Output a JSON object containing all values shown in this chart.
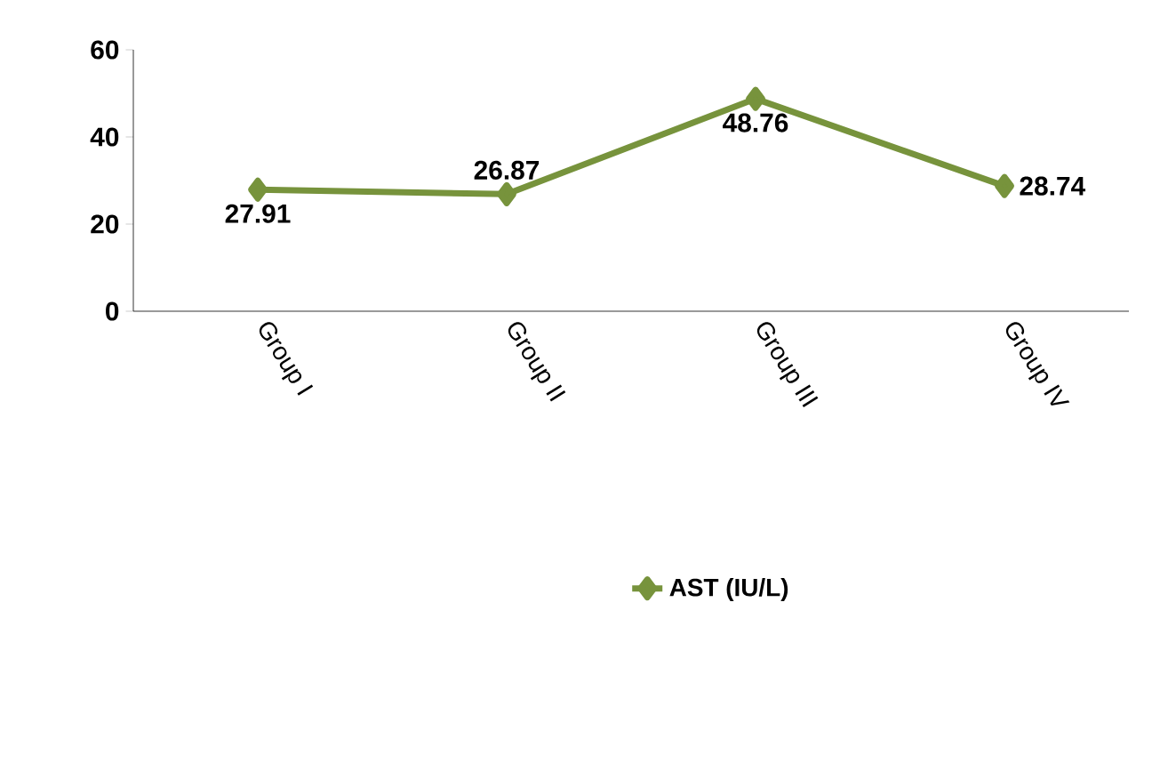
{
  "chart_data": {
    "type": "line",
    "categories": [
      "Group I",
      "Group II",
      "Group III",
      "Group IV"
    ],
    "series": [
      {
        "name": "AST (IU/L)",
        "color": "#77933c",
        "values": [
          27.91,
          26.87,
          48.76,
          28.74
        ]
      }
    ],
    "ylim": [
      0,
      60
    ],
    "yticks": [
      0,
      20,
      40,
      60
    ],
    "data_labels": true,
    "marker": "diamond",
    "legend": "bottom",
    "grid": false
  }
}
